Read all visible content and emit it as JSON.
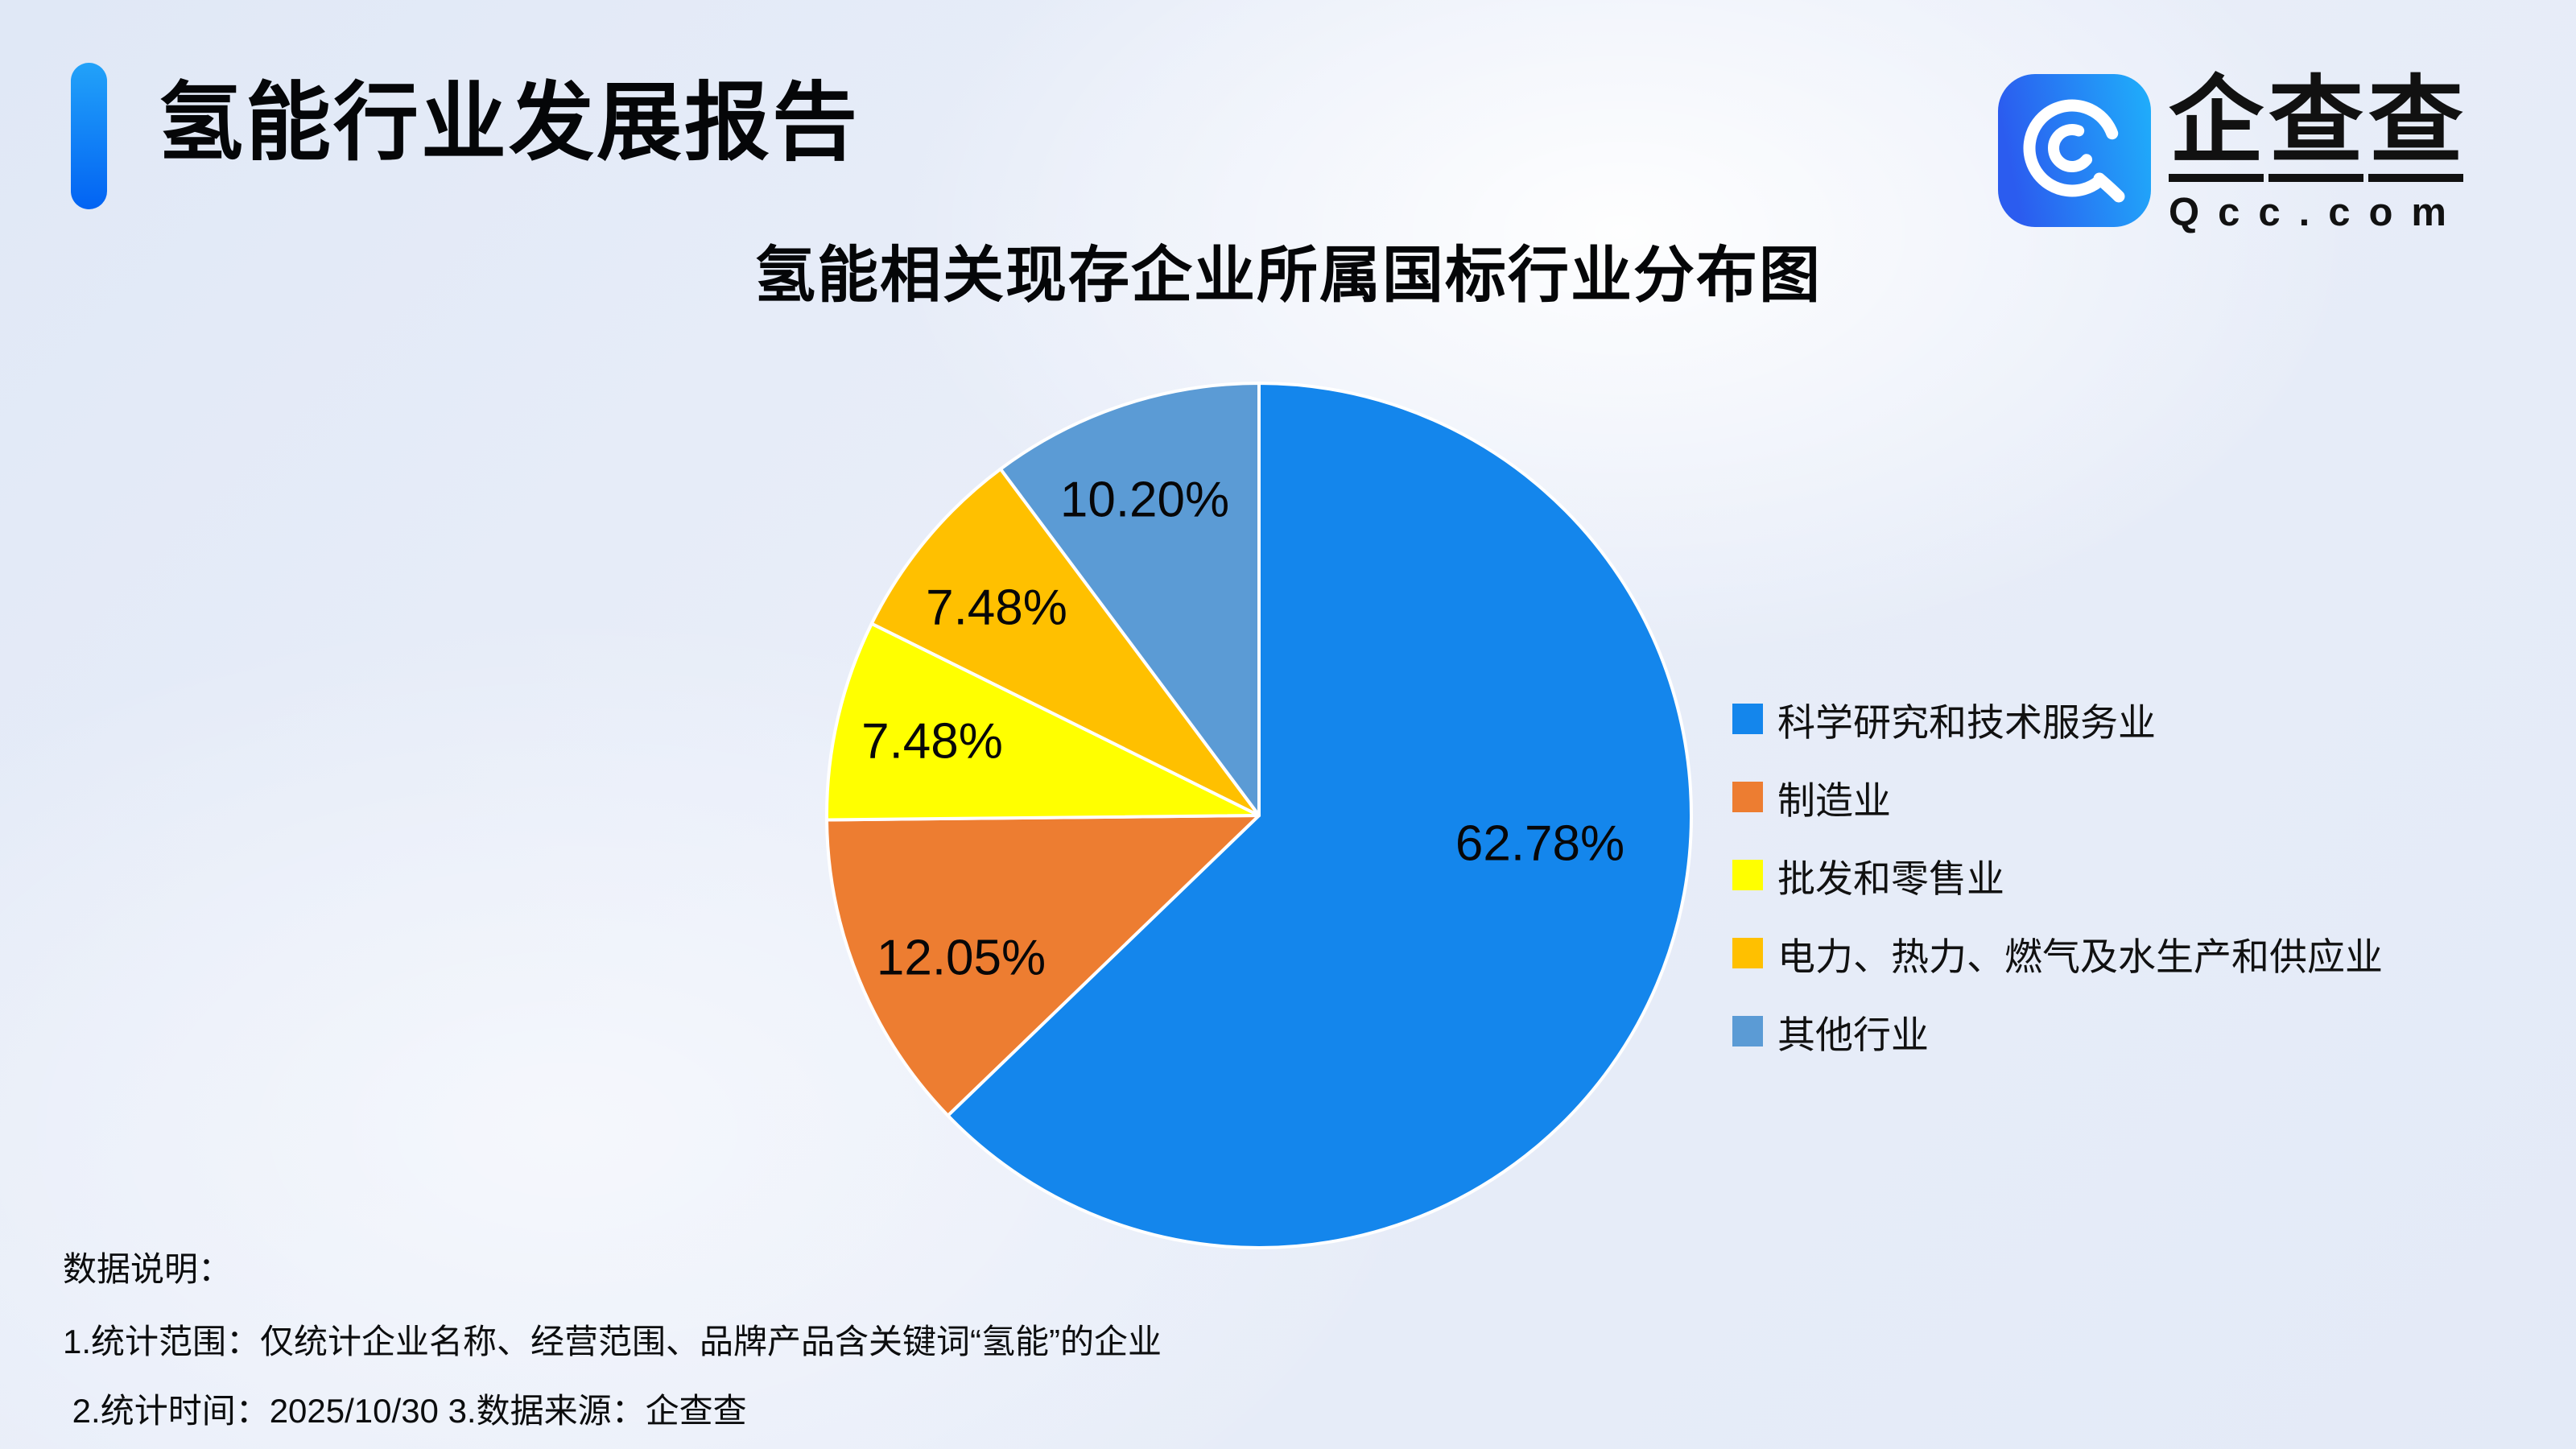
{
  "page": {
    "report_title": "氢能行业发展报告",
    "accent_bar_colors": [
      "#22a2f9",
      "#0263f3"
    ],
    "background_color": "#e7edf8"
  },
  "logo": {
    "brand_chars": [
      "企",
      "查",
      "查"
    ],
    "brand_name": "企查查",
    "domain": "Qcc.com",
    "icon_name": "qcc-magnifier-icon",
    "icon_gradient": [
      "#2b5cef",
      "#1fb0fb"
    ]
  },
  "chart_data": {
    "type": "pie",
    "title": "氢能相关现存企业所属国标行业分布图",
    "categories": [
      "科学研究和技术服务业",
      "制造业",
      "批发和零售业",
      "电力、热力、燃气及水生产和供应业",
      "其他行业"
    ],
    "values": [
      62.78,
      12.05,
      7.48,
      7.48,
      10.2
    ],
    "labels": [
      "62.78%",
      "12.05%",
      "7.48%",
      "7.48%",
      "10.20%"
    ],
    "colors": [
      "#1486ec",
      "#ed7d31",
      "#ffff00",
      "#ffc000",
      "#5b9bd5"
    ],
    "legend_position": "right",
    "start_angle_deg": 0,
    "direction": "clockwise",
    "slice_border_color": "#ffffff"
  },
  "footer": {
    "heading": "数据说明：",
    "line1": "1.统计范围：仅统计企业名称、经营范围、品牌产品含关键词“氢能”的企业",
    "line2": " 2.统计时间：2025/10/30 3.数据来源：企查查"
  }
}
